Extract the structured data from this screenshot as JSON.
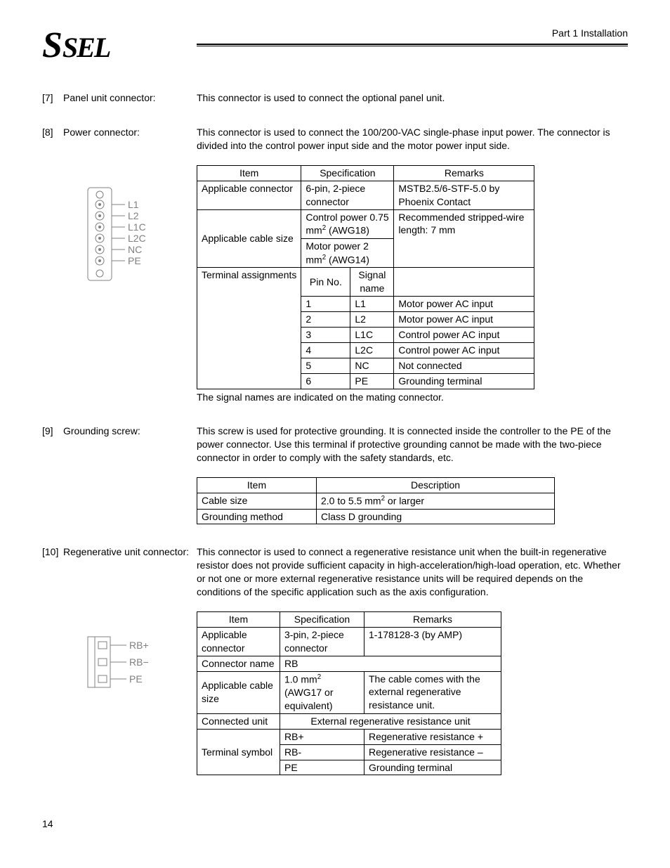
{
  "header": {
    "logo_s": "S",
    "logo_rest": "SEL",
    "part": "Part 1 Installation"
  },
  "items": [
    {
      "num": "[7]",
      "name": "Panel unit connector:",
      "desc": "This connector is used to connect the optional panel unit."
    },
    {
      "num": "[8]",
      "name": "Power connector:",
      "desc": "This connector is used to connect the 100/200-VAC single-phase input power. The connector is divided into the control power input side and the motor power input side."
    },
    {
      "num": "[9]",
      "name": "Grounding screw:",
      "desc": "This screw is used for protective grounding. It is connected inside the controller to the PE of the power connector. Use this terminal if protective grounding cannot be made with the two-piece connector in order to comply with the safety standards, etc."
    },
    {
      "num": "[10]",
      "name": "Regenerative unit connector:",
      "desc": "This connector is used to connect a regenerative resistance unit when the built-in regenerative resistor does not provide sufficient capacity in high-acceleration/high-load operation, etc. Whether or not one or more external regenerative resistance units will be required depends on the conditions of the specific application such as the axis configuration."
    }
  ],
  "power_fig_labels": [
    "L1",
    "L2",
    "L1C",
    "L2C",
    "NC",
    "PE"
  ],
  "power_table": {
    "headers": [
      "Item",
      "Specification",
      "Remarks"
    ],
    "conn_row": {
      "item": "Applicable connector",
      "spec": "6-pin, 2-piece connector",
      "rem": "MSTB2.5/6-STF-5.0 by Phoenix Contact"
    },
    "cable_row": {
      "item": "Applicable cable size",
      "spec1_pre": "Control power 0.75 mm",
      "spec1_post": " (AWG18)",
      "spec2_pre": "Motor power 2 mm",
      "spec2_post": " (AWG14)",
      "rem": "Recommended stripped-wire length: 7 mm"
    },
    "term_row": {
      "item": "Terminal assignments",
      "c1": "Pin No.",
      "c2": "Signal name"
    },
    "pins": [
      {
        "no": "1",
        "sig": "L1",
        "rem": "Motor power AC input"
      },
      {
        "no": "2",
        "sig": "L2",
        "rem": "Motor power AC input"
      },
      {
        "no": "3",
        "sig": "L1C",
        "rem": "Control power AC input"
      },
      {
        "no": "4",
        "sig": "L2C",
        "rem": "Control power AC input"
      },
      {
        "no": "5",
        "sig": "NC",
        "rem": "Not connected"
      },
      {
        "no": "6",
        "sig": "PE",
        "rem": "Grounding terminal"
      }
    ],
    "note": "The signal names are indicated on the mating connector."
  },
  "ground_table": {
    "headers": [
      "Item",
      "Description"
    ],
    "rows": [
      {
        "item": "Cable size",
        "desc_pre": "2.0 to 5.5 mm",
        "desc_post": " or larger"
      },
      {
        "item": "Grounding method",
        "desc": "Class D grounding"
      }
    ]
  },
  "regen_fig_labels": [
    "RB+",
    "RB−",
    "PE"
  ],
  "regen_table": {
    "headers": [
      "Item",
      "Specification",
      "Remarks"
    ],
    "conn_row": {
      "item": "Applicable connector",
      "spec": "3-pin, 2-piece connector",
      "rem": "1-178128-3 (by AMP)"
    },
    "name_row": {
      "item": "Connector name",
      "spec": "RB"
    },
    "cable_row": {
      "item": "Applicable cable size",
      "spec_pre": "1.0 mm",
      "spec_post": " (AWG17 or equivalent)",
      "rem": "The cable comes with the external regenerative resistance unit."
    },
    "unit_row": {
      "item": "Connected unit",
      "spec": "External regenerative resistance unit"
    },
    "term_item": "Terminal symbol",
    "terms": [
      {
        "sym": "RB+",
        "rem": "Regenerative resistance +"
      },
      {
        "sym": "RB-",
        "rem": "Regenerative resistance –"
      },
      {
        "sym": "PE",
        "rem": "Grounding terminal"
      }
    ]
  },
  "page": "14"
}
